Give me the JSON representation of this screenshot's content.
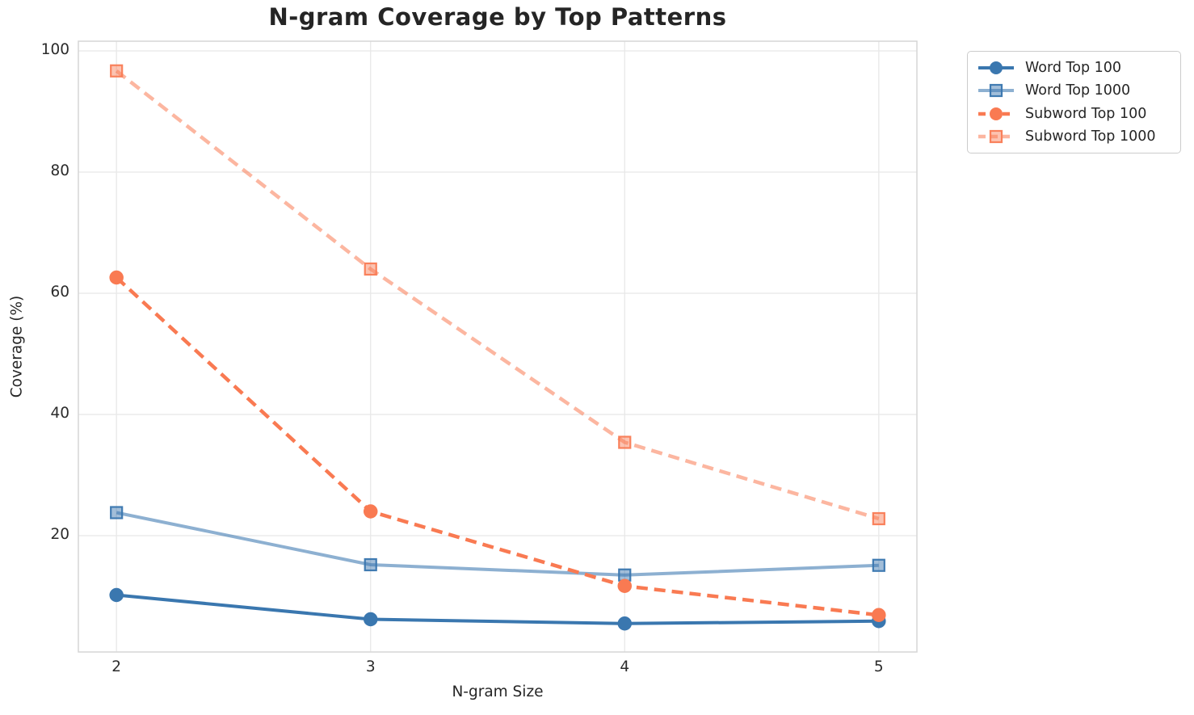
{
  "title": "N-gram Coverage by Top Patterns",
  "palette": {
    "blue": "#3a77af",
    "blue_light_rendered": "#7fa8cb",
    "orange": "#f97a52",
    "orange_light_rendered": "#fbab8f",
    "gridline": "#e8e8e8",
    "frame": "#d6d6d6",
    "text": "#262626",
    "legend_border": "#cccccc",
    "background": "#ffffff"
  },
  "chart_data": {
    "type": "line",
    "title": "N-gram Coverage by Top Patterns",
    "xlabel": "N-gram Size",
    "ylabel": "Coverage (%)",
    "x": [
      2,
      3,
      4,
      5
    ],
    "xticks": [
      2,
      3,
      4,
      5
    ],
    "yticks": [
      20,
      40,
      60,
      80,
      100
    ],
    "xlim": [
      1.85,
      5.15
    ],
    "ylim": [
      0.8,
      101.6
    ],
    "grid": true,
    "legend_position": "outside-upper-right",
    "series": [
      {
        "name": "Word Top 100",
        "values": [
          10.2,
          6.2,
          5.5,
          5.9
        ],
        "color": "#3a77af",
        "opacity": 1,
        "line_style": "solid",
        "marker": "circle"
      },
      {
        "name": "Word Top 1000",
        "values": [
          23.8,
          15.2,
          13.5,
          15.1
        ],
        "color": "#3a77af",
        "opacity": 0.58,
        "line_style": "solid",
        "marker": "square"
      },
      {
        "name": "Subword Top 100",
        "values": [
          62.6,
          24.0,
          11.7,
          6.9
        ],
        "color": "#f97a52",
        "opacity": 1,
        "line_style": "dashed",
        "marker": "circle"
      },
      {
        "name": "Subword Top 1000",
        "values": [
          96.7,
          64.0,
          35.4,
          22.8
        ],
        "color": "#f97a52",
        "opacity": 0.55,
        "line_style": "dashed",
        "marker": "square"
      }
    ]
  }
}
